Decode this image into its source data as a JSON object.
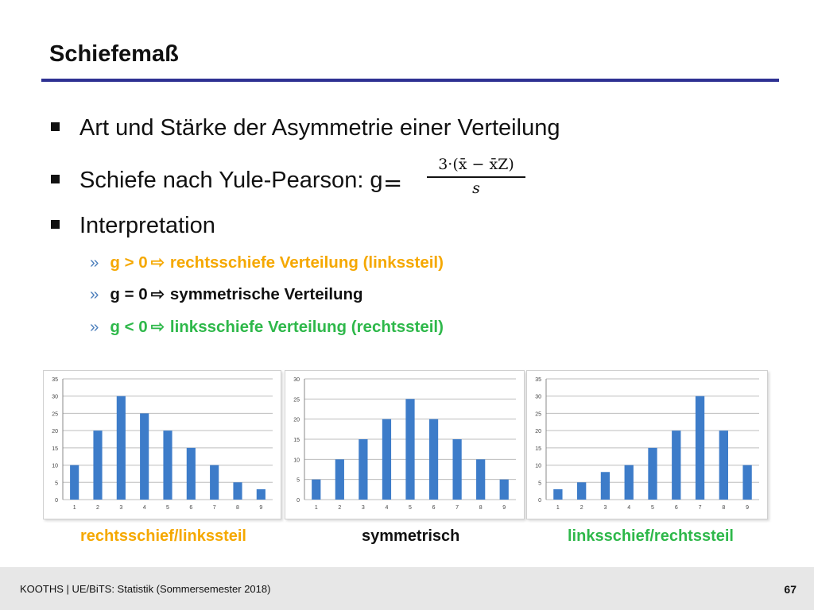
{
  "slide": {
    "title": "Schiefemaß",
    "bullets": [
      "Art und Stärke der Asymmetrie einer Verteilung",
      "Schiefe nach Yule-Pearson: g",
      "Interpretation"
    ],
    "formula": {
      "lhs": "g",
      "eq": "=",
      "numerator": "3·(x̄ − x̄Z)",
      "denominator": "s"
    },
    "sub_marker": "»",
    "arrow_icon": "⇨",
    "interpretations": [
      {
        "cond": "g > 0",
        "text": "rechtsschiefe Verteilung (linkssteil)",
        "color": "#f5a800"
      },
      {
        "cond": "g = 0",
        "text": "symmetrische Verteilung",
        "color": "#111111"
      },
      {
        "cond": "g < 0",
        "text": "linksschiefe Verteilung (rechtssteil)",
        "color": "#2eb84a"
      }
    ],
    "captions": [
      {
        "text": "rechtsschief/linkssteil",
        "color": "#f5a800"
      },
      {
        "text": "symmetrisch",
        "color": "#111111"
      },
      {
        "text": "linksschief/rechtssteil",
        "color": "#2eb84a"
      }
    ]
  },
  "chart_data": [
    {
      "type": "bar",
      "categories": [
        "1",
        "2",
        "3",
        "4",
        "5",
        "6",
        "7",
        "8",
        "9"
      ],
      "values": [
        10,
        20,
        30,
        25,
        20,
        15,
        10,
        5,
        3
      ],
      "ylim": [
        0,
        35
      ],
      "yticks": [
        "0",
        "5",
        "10",
        "15",
        "20",
        "25",
        "30",
        "35"
      ],
      "grid": true,
      "bar_color": "#3d7cc9"
    },
    {
      "type": "bar",
      "categories": [
        "1",
        "2",
        "3",
        "4",
        "5",
        "6",
        "7",
        "8",
        "9"
      ],
      "values": [
        5,
        10,
        15,
        20,
        25,
        20,
        15,
        10,
        5
      ],
      "ylim": [
        0,
        30
      ],
      "yticks": [
        "0",
        "5",
        "10",
        "15",
        "20",
        "25",
        "30"
      ],
      "grid": true,
      "bar_color": "#3d7cc9"
    },
    {
      "type": "bar",
      "categories": [
        "1",
        "2",
        "3",
        "4",
        "5",
        "6",
        "7",
        "8",
        "9"
      ],
      "values": [
        3,
        5,
        8,
        10,
        15,
        20,
        30,
        20,
        10
      ],
      "ylim": [
        0,
        35
      ],
      "yticks": [
        "0",
        "5",
        "10",
        "15",
        "20",
        "25",
        "30",
        "35"
      ],
      "grid": true,
      "bar_color": "#3d7cc9"
    }
  ],
  "footer": {
    "text": "KOOTHS | UE/BiTS: Statistik (Sommersemester 2018)",
    "page": "67"
  }
}
